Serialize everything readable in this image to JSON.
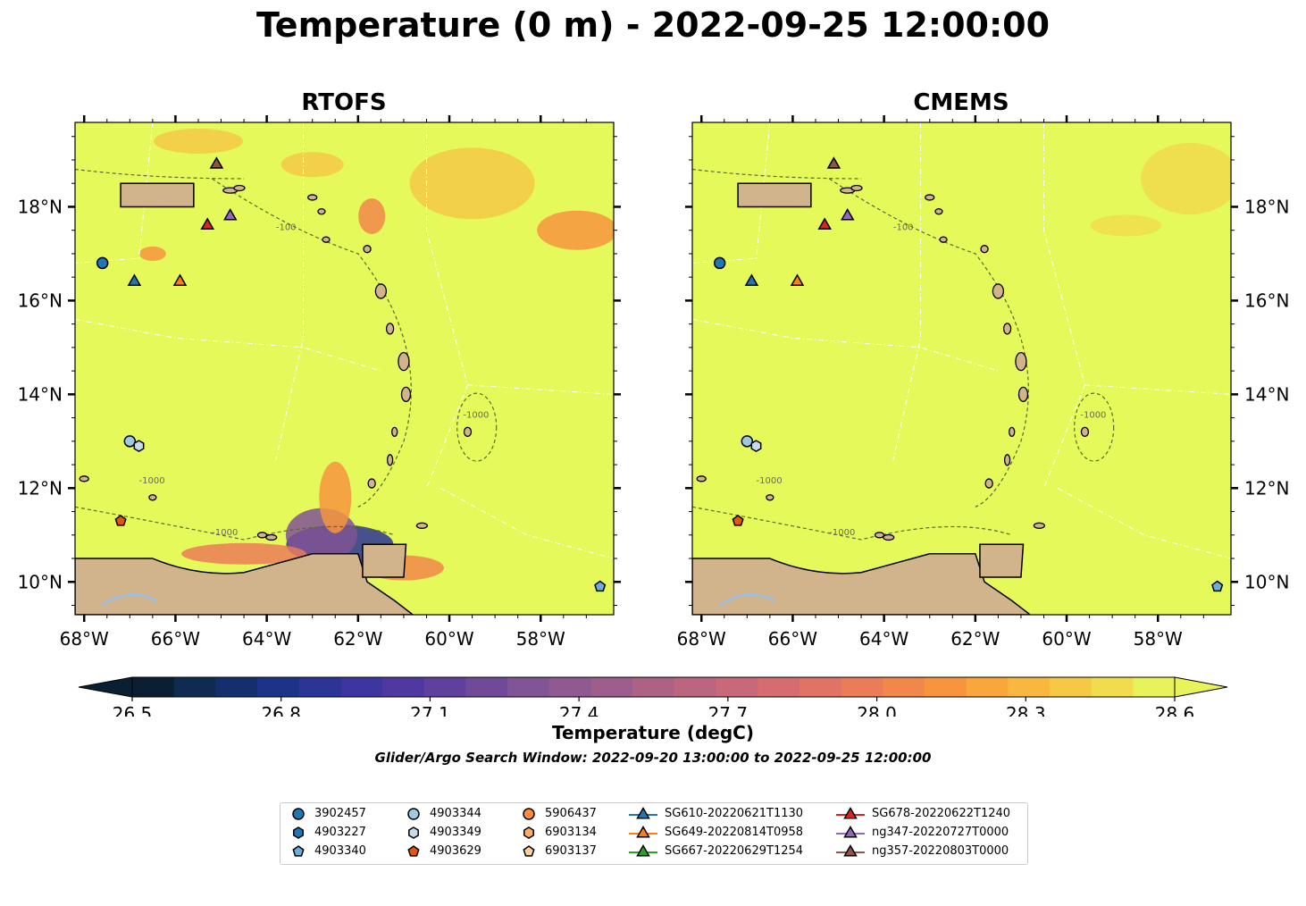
{
  "title": "Temperature (0 m) - 2022-09-25 12:00:00",
  "panels": [
    {
      "title": "RTOFS",
      "x_ticks": [
        "68°W",
        "66°W",
        "64°W",
        "62°W",
        "60°W",
        "58°W"
      ],
      "y_ticks": [
        "18°N",
        "16°N",
        "14°N",
        "12°N",
        "10°N"
      ]
    },
    {
      "title": "CMEMS",
      "x_ticks": [
        "68°W",
        "66°W",
        "64°W",
        "62°W",
        "60°W",
        "58°W"
      ],
      "y_ticks": [
        "18°N",
        "16°N",
        "14°N",
        "12°N",
        "10°N"
      ]
    }
  ],
  "contour_labels": [
    "-100",
    "-1000"
  ],
  "colorbar": {
    "label": "Temperature (degC)",
    "ticks": [
      "26.5",
      "26.8",
      "27.1",
      "27.4",
      "27.7",
      "28.0",
      "28.3",
      "28.6"
    ],
    "min": 26.5,
    "max": 28.6,
    "colors": [
      "#0b1f33",
      "#0f2b52",
      "#152f6e",
      "#1d3387",
      "#2a3595",
      "#3d35a0",
      "#4f38a0",
      "#60409d",
      "#704a98",
      "#805495",
      "#8f5a91",
      "#9e5e8c",
      "#ad6285",
      "#bc6580",
      "#c96878",
      "#d56c70",
      "#e07366",
      "#ea7c58",
      "#f1874a",
      "#f6953e",
      "#f9a63a",
      "#f8b83f",
      "#f5c946",
      "#f0dc4c",
      "#e8f25a"
    ]
  },
  "search_window": "Glider/Argo Search Window: 2022-09-20 13:00:00 to 2022-09-25 12:00:00",
  "colors": {
    "ocean": "#e6f95a",
    "land": "#d2b48c",
    "lake": "#a3bedc"
  },
  "legend": [
    {
      "label": "3902457",
      "marker": "circle",
      "color": "#1f77b4"
    },
    {
      "label": "4903227",
      "marker": "hexagon",
      "color": "#1f77b4"
    },
    {
      "label": "4903340",
      "marker": "pentagon",
      "color": "#6baed6"
    },
    {
      "label": "4903344",
      "marker": "circle",
      "color": "#9ecae1"
    },
    {
      "label": "4903349",
      "marker": "hexagon",
      "color": "#c6dbef"
    },
    {
      "label": "4903629",
      "marker": "pentagon",
      "color": "#e6550d"
    },
    {
      "label": "5906437",
      "marker": "circle",
      "color": "#fd8d3c"
    },
    {
      "label": "6903134",
      "marker": "hexagon",
      "color": "#fdae6b"
    },
    {
      "label": "6903137",
      "marker": "pentagon",
      "color": "#fdd0a2"
    },
    {
      "label": "SG610-20220621T1130",
      "marker": "triangle",
      "color": "#1f77b4"
    },
    {
      "label": "SG649-20220814T0958",
      "marker": "triangle",
      "color": "#ff7f0e"
    },
    {
      "label": "SG667-20220629T1254",
      "marker": "triangle",
      "color": "#2ca02c"
    },
    {
      "label": "SG678-20220622T1240",
      "marker": "triangle",
      "color": "#d62728"
    },
    {
      "label": "ng347-20220727T0000",
      "marker": "triangle",
      "color": "#9467bd"
    },
    {
      "label": "ng357-20220803T0000",
      "marker": "triangle",
      "color": "#8c564b"
    }
  ],
  "platforms": [
    {
      "id": "3902457",
      "lon": -67.6,
      "lat": 16.8
    },
    {
      "id": "4903344",
      "lon": -67.0,
      "lat": 13.0
    },
    {
      "id": "4903349",
      "lon": -66.8,
      "lat": 12.9
    },
    {
      "id": "4903629",
      "lon": -67.2,
      "lat": 11.3
    },
    {
      "id": "4903340",
      "lon": -56.7,
      "lat": 9.9
    },
    {
      "id": "SG610-20220621T1130",
      "lon": -66.9,
      "lat": 16.4
    },
    {
      "id": "SG649-20220814T0958",
      "lon": -65.9,
      "lat": 16.4
    },
    {
      "id": "SG678-20220622T1240",
      "lon": -65.3,
      "lat": 17.6
    },
    {
      "id": "ng347-20220727T0000",
      "lon": -64.8,
      "lat": 17.8
    },
    {
      "id": "ng357-20220803T0000",
      "lon": -65.1,
      "lat": 18.9
    }
  ]
}
